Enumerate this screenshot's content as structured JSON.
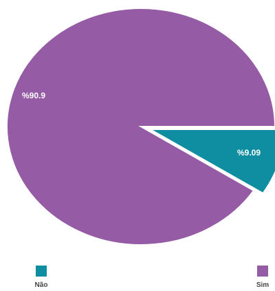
{
  "chart_data": {
    "type": "pie",
    "title": "",
    "start_angle_deg": 0,
    "direction": "clockwise",
    "legend_position": "bottom",
    "slices": [
      {
        "name": "Não",
        "value": 9.09,
        "label": "%9.09",
        "color": "#0f8ea1"
      },
      {
        "name": "Sim",
        "value": 90.9,
        "label": "%90.9",
        "color": "#955ba5"
      }
    ]
  },
  "legend": [
    {
      "label": "Não",
      "color": "#0f8ea1"
    },
    {
      "label": "Sim",
      "color": "#955ba5"
    }
  ]
}
